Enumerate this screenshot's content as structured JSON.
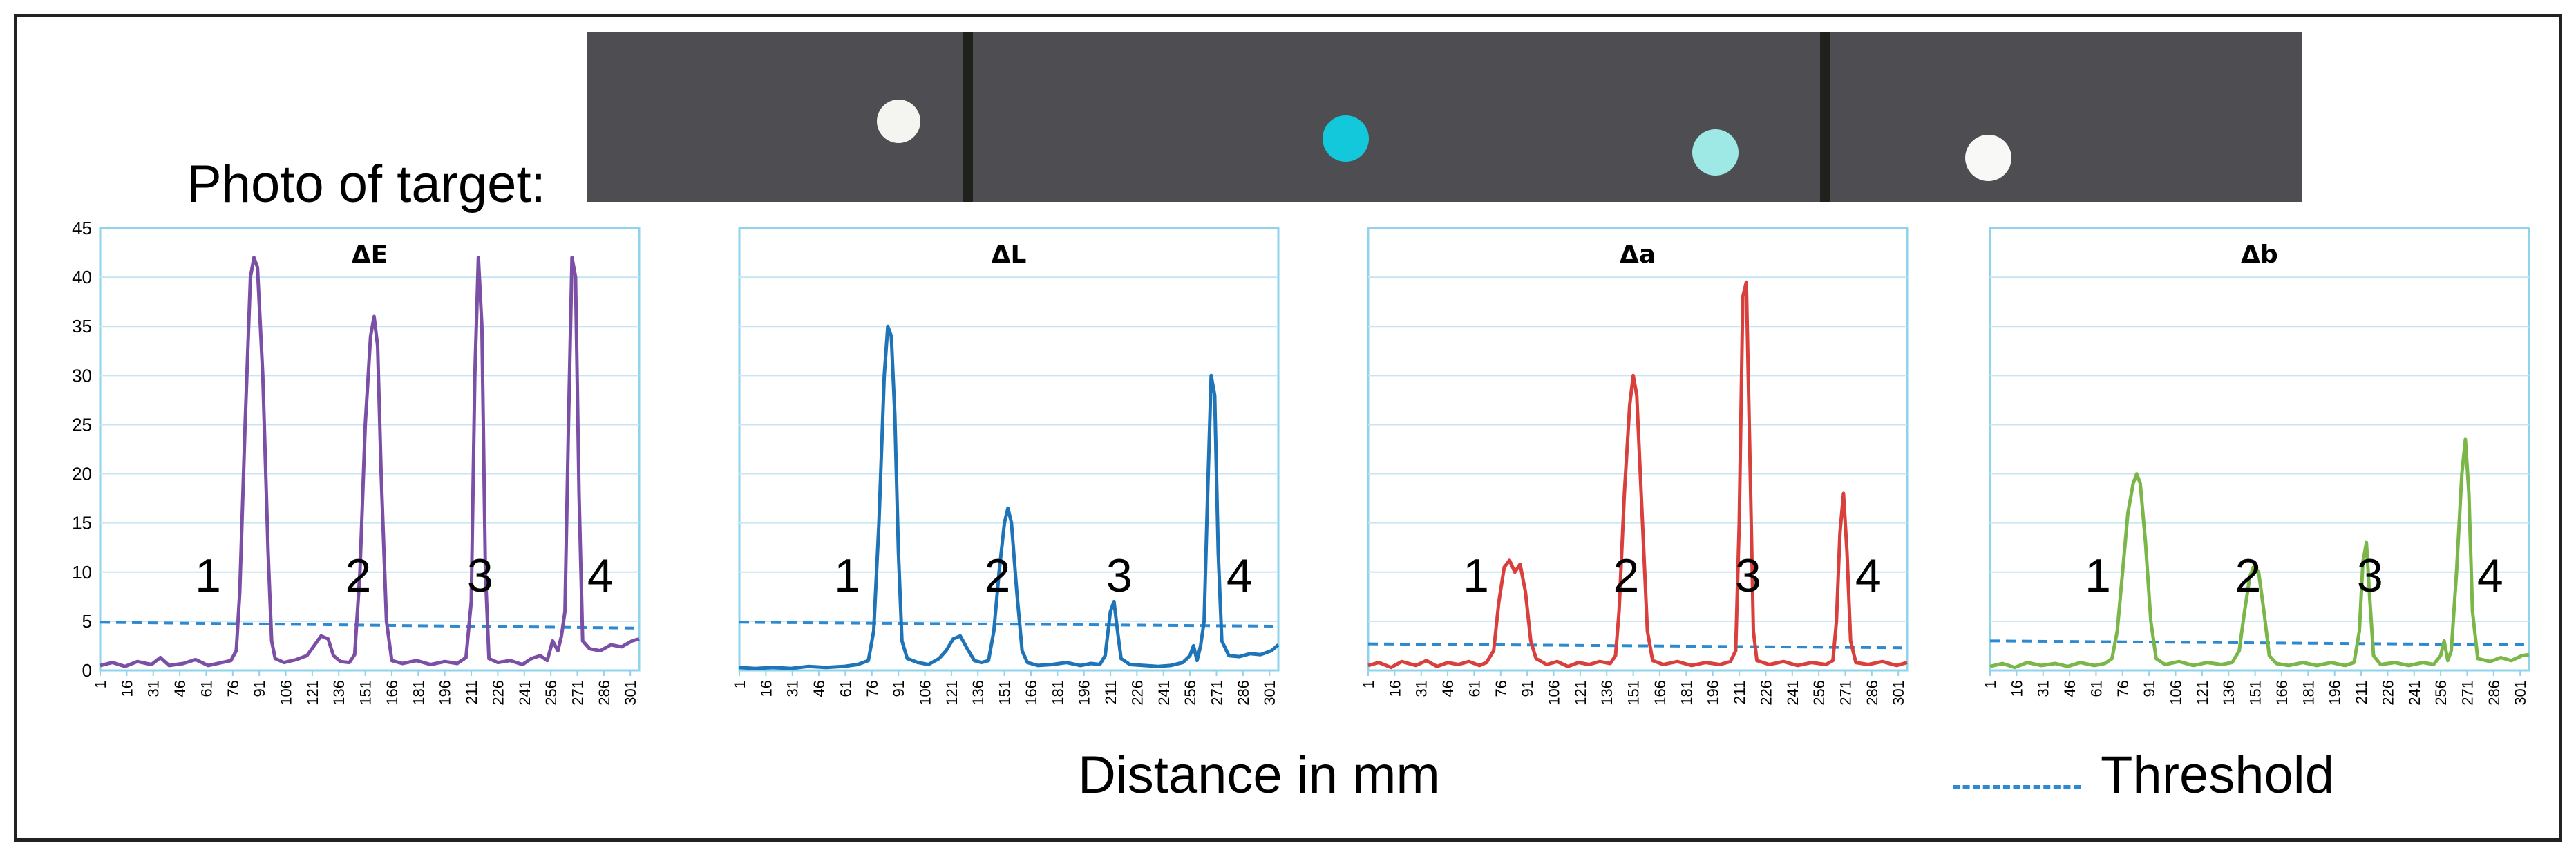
{
  "photo": {
    "label": "Photo of target:",
    "dots": [
      {
        "name": "white-dot-1",
        "color": "#f4f4f0"
      },
      {
        "name": "cyan-dot",
        "color": "#14c8dc"
      },
      {
        "name": "light-cyan-dot",
        "color": "#9ee8e6"
      },
      {
        "name": "white-dot-2",
        "color": "#f8f8f6"
      }
    ]
  },
  "xlabel": "Distance in mm",
  "legend": {
    "threshold_label": "Threshold",
    "threshold_color": "#2e8ad0"
  },
  "chart_data": [
    {
      "type": "line",
      "title": "ΔE",
      "color": "#7b4fa5",
      "xlim": [
        1,
        306
      ],
      "ylim": [
        0,
        45
      ],
      "yticks": [
        "0",
        "5",
        "10",
        "15",
        "20",
        "25",
        "30",
        "35",
        "40",
        "45"
      ],
      "xticks": [
        "1",
        "16",
        "31",
        "46",
        "61",
        "76",
        "91",
        "106",
        "121",
        "136",
        "151",
        "166",
        "181",
        "196",
        "211",
        "226",
        "241",
        "256",
        "271",
        "286",
        "301"
      ],
      "grid": true,
      "threshold": [
        [
          1,
          4.9
        ],
        [
          306,
          4.3
        ]
      ],
      "labels": [
        "1",
        "2",
        "3",
        "4"
      ],
      "label_x": [
        62,
        147,
        216,
        284
      ],
      "points": [
        [
          1,
          0.5
        ],
        [
          8,
          0.8
        ],
        [
          15,
          0.4
        ],
        [
          22,
          0.9
        ],
        [
          30,
          0.6
        ],
        [
          35,
          1.3
        ],
        [
          40,
          0.5
        ],
        [
          48,
          0.7
        ],
        [
          55,
          1.1
        ],
        [
          62,
          0.5
        ],
        [
          70,
          0.8
        ],
        [
          75,
          1.0
        ],
        [
          78,
          2
        ],
        [
          80,
          8
        ],
        [
          83,
          25
        ],
        [
          86,
          40
        ],
        [
          88,
          42
        ],
        [
          90,
          41
        ],
        [
          93,
          30
        ],
        [
          96,
          12
        ],
        [
          98,
          3
        ],
        [
          100,
          1.2
        ],
        [
          105,
          0.8
        ],
        [
          112,
          1.1
        ],
        [
          118,
          1.5
        ],
        [
          122,
          2.5
        ],
        [
          126,
          3.5
        ],
        [
          130,
          3.2
        ],
        [
          133,
          1.5
        ],
        [
          137,
          0.9
        ],
        [
          142,
          0.8
        ],
        [
          145,
          1.6
        ],
        [
          148,
          10
        ],
        [
          151,
          25
        ],
        [
          154,
          34
        ],
        [
          156,
          36
        ],
        [
          158,
          33
        ],
        [
          160,
          20
        ],
        [
          163,
          5
        ],
        [
          166,
          1.0
        ],
        [
          172,
          0.7
        ],
        [
          180,
          1.0
        ],
        [
          188,
          0.6
        ],
        [
          196,
          0.9
        ],
        [
          203,
          0.7
        ],
        [
          208,
          1.3
        ],
        [
          211,
          7
        ],
        [
          213,
          30
        ],
        [
          215,
          42
        ],
        [
          217,
          35
        ],
        [
          219,
          10
        ],
        [
          221,
          1.2
        ],
        [
          226,
          0.8
        ],
        [
          233,
          1.0
        ],
        [
          240,
          0.6
        ],
        [
          245,
          1.2
        ],
        [
          250,
          1.5
        ],
        [
          254,
          1.0
        ],
        [
          257,
          3.0
        ],
        [
          260,
          2.0
        ],
        [
          262,
          3.5
        ],
        [
          264,
          6
        ],
        [
          266,
          25
        ],
        [
          268,
          42
        ],
        [
          270,
          40
        ],
        [
          272,
          18
        ],
        [
          274,
          3
        ],
        [
          278,
          2.2
        ],
        [
          284,
          2.0
        ],
        [
          290,
          2.6
        ],
        [
          296,
          2.4
        ],
        [
          302,
          3.0
        ],
        [
          306,
          3.2
        ]
      ]
    },
    {
      "type": "line",
      "title": "ΔL",
      "color": "#1f74b8",
      "xlim": [
        1,
        306
      ],
      "ylim": [
        0,
        45
      ],
      "yticks": [],
      "xticks": [
        "1",
        "16",
        "31",
        "46",
        "61",
        "76",
        "91",
        "106",
        "121",
        "136",
        "151",
        "166",
        "181",
        "196",
        "211",
        "226",
        "241",
        "256",
        "271",
        "286",
        "301"
      ],
      "grid": true,
      "threshold": [
        [
          1,
          4.9
        ],
        [
          306,
          4.5
        ]
      ],
      "labels": [
        "1",
        "2",
        "3",
        "4"
      ],
      "label_x": [
        62,
        147,
        216,
        284
      ],
      "points": [
        [
          1,
          0.3
        ],
        [
          10,
          0.2
        ],
        [
          20,
          0.3
        ],
        [
          30,
          0.2
        ],
        [
          40,
          0.4
        ],
        [
          50,
          0.3
        ],
        [
          60,
          0.4
        ],
        [
          68,
          0.6
        ],
        [
          74,
          1.0
        ],
        [
          77,
          4
        ],
        [
          80,
          15
        ],
        [
          83,
          30
        ],
        [
          85,
          35
        ],
        [
          87,
          34
        ],
        [
          89,
          26
        ],
        [
          91,
          12
        ],
        [
          93,
          3
        ],
        [
          96,
          1.2
        ],
        [
          102,
          0.8
        ],
        [
          108,
          0.6
        ],
        [
          114,
          1.2
        ],
        [
          118,
          2.0
        ],
        [
          122,
          3.2
        ],
        [
          126,
          3.5
        ],
        [
          130,
          2.2
        ],
        [
          134,
          1.0
        ],
        [
          138,
          0.8
        ],
        [
          142,
          1.0
        ],
        [
          145,
          4
        ],
        [
          148,
          10
        ],
        [
          151,
          15
        ],
        [
          153,
          16.5
        ],
        [
          155,
          15
        ],
        [
          158,
          8
        ],
        [
          161,
          2
        ],
        [
          164,
          0.8
        ],
        [
          170,
          0.5
        ],
        [
          178,
          0.6
        ],
        [
          186,
          0.8
        ],
        [
          194,
          0.5
        ],
        [
          200,
          0.7
        ],
        [
          205,
          0.6
        ],
        [
          208,
          1.5
        ],
        [
          211,
          6
        ],
        [
          213,
          7
        ],
        [
          215,
          4
        ],
        [
          217,
          1.2
        ],
        [
          222,
          0.6
        ],
        [
          230,
          0.5
        ],
        [
          238,
          0.4
        ],
        [
          245,
          0.5
        ],
        [
          252,
          0.8
        ],
        [
          256,
          1.5
        ],
        [
          258,
          2.5
        ],
        [
          260,
          1.0
        ],
        [
          262,
          2.5
        ],
        [
          264,
          5
        ],
        [
          266,
          18
        ],
        [
          268,
          30
        ],
        [
          270,
          28
        ],
        [
          272,
          12
        ],
        [
          274,
          3
        ],
        [
          278,
          1.5
        ],
        [
          284,
          1.4
        ],
        [
          290,
          1.7
        ],
        [
          296,
          1.6
        ],
        [
          302,
          2.0
        ],
        [
          306,
          2.6
        ]
      ]
    },
    {
      "type": "line",
      "title": "Δa",
      "color": "#d9403c",
      "xlim": [
        1,
        306
      ],
      "ylim": [
        0,
        45
      ],
      "yticks": [],
      "xticks": [
        "1",
        "16",
        "31",
        "46",
        "61",
        "76",
        "91",
        "106",
        "121",
        "136",
        "151",
        "166",
        "181",
        "196",
        "211",
        "226",
        "241",
        "256",
        "271",
        "286",
        "301"
      ],
      "grid": true,
      "threshold": [
        [
          1,
          2.7
        ],
        [
          306,
          2.3
        ]
      ],
      "labels": [
        "1",
        "2",
        "3",
        "4"
      ],
      "label_x": [
        62,
        147,
        216,
        284
      ],
      "points": [
        [
          1,
          0.5
        ],
        [
          7,
          0.8
        ],
        [
          14,
          0.3
        ],
        [
          20,
          0.9
        ],
        [
          28,
          0.5
        ],
        [
          34,
          1.0
        ],
        [
          40,
          0.4
        ],
        [
          46,
          0.8
        ],
        [
          52,
          0.6
        ],
        [
          58,
          0.9
        ],
        [
          64,
          0.5
        ],
        [
          68,
          0.8
        ],
        [
          72,
          2
        ],
        [
          75,
          7
        ],
        [
          78,
          10.5
        ],
        [
          81,
          11.2
        ],
        [
          84,
          10
        ],
        [
          87,
          10.8
        ],
        [
          90,
          8
        ],
        [
          93,
          3
        ],
        [
          96,
          1.2
        ],
        [
          102,
          0.6
        ],
        [
          108,
          0.9
        ],
        [
          114,
          0.4
        ],
        [
          120,
          0.8
        ],
        [
          126,
          0.6
        ],
        [
          132,
          0.9
        ],
        [
          138,
          0.7
        ],
        [
          141,
          1.5
        ],
        [
          143,
          6
        ],
        [
          146,
          18
        ],
        [
          149,
          27
        ],
        [
          151,
          30
        ],
        [
          153,
          28
        ],
        [
          156,
          16
        ],
        [
          159,
          4
        ],
        [
          162,
          1.0
        ],
        [
          168,
          0.6
        ],
        [
          176,
          0.9
        ],
        [
          184,
          0.5
        ],
        [
          192,
          0.8
        ],
        [
          200,
          0.6
        ],
        [
          206,
          0.9
        ],
        [
          209,
          2
        ],
        [
          211,
          15
        ],
        [
          213,
          38
        ],
        [
          215,
          39.5
        ],
        [
          217,
          22
        ],
        [
          219,
          4
        ],
        [
          221,
          1.0
        ],
        [
          228,
          0.6
        ],
        [
          236,
          0.9
        ],
        [
          244,
          0.5
        ],
        [
          252,
          0.8
        ],
        [
          260,
          0.6
        ],
        [
          264,
          1.0
        ],
        [
          266,
          5
        ],
        [
          268,
          14
        ],
        [
          270,
          18
        ],
        [
          272,
          12
        ],
        [
          274,
          3
        ],
        [
          277,
          0.8
        ],
        [
          284,
          0.6
        ],
        [
          292,
          0.9
        ],
        [
          300,
          0.5
        ],
        [
          306,
          0.8
        ]
      ]
    },
    {
      "type": "line",
      "title": "Δb",
      "color": "#7ab648",
      "xlim": [
        1,
        306
      ],
      "ylim": [
        0,
        45
      ],
      "yticks": [],
      "xticks": [
        "1",
        "16",
        "31",
        "46",
        "61",
        "76",
        "91",
        "106",
        "121",
        "136",
        "151",
        "166",
        "181",
        "196",
        "211",
        "226",
        "241",
        "256",
        "271",
        "286",
        "301"
      ],
      "grid": true,
      "threshold": [
        [
          1,
          3.0
        ],
        [
          306,
          2.6
        ]
      ],
      "labels": [
        "1",
        "2",
        "3",
        "4"
      ],
      "label_x": [
        62,
        147,
        216,
        284
      ],
      "points": [
        [
          1,
          0.4
        ],
        [
          8,
          0.7
        ],
        [
          15,
          0.3
        ],
        [
          22,
          0.8
        ],
        [
          30,
          0.5
        ],
        [
          38,
          0.7
        ],
        [
          45,
          0.4
        ],
        [
          52,
          0.8
        ],
        [
          60,
          0.5
        ],
        [
          66,
          0.7
        ],
        [
          70,
          1.2
        ],
        [
          73,
          4
        ],
        [
          76,
          10
        ],
        [
          79,
          16
        ],
        [
          82,
          19
        ],
        [
          84,
          20
        ],
        [
          86,
          19
        ],
        [
          89,
          13
        ],
        [
          92,
          5
        ],
        [
          95,
          1.2
        ],
        [
          100,
          0.6
        ],
        [
          108,
          0.9
        ],
        [
          116,
          0.5
        ],
        [
          124,
          0.8
        ],
        [
          132,
          0.6
        ],
        [
          138,
          0.8
        ],
        [
          142,
          2
        ],
        [
          145,
          6
        ],
        [
          148,
          9.5
        ],
        [
          150,
          10.5
        ],
        [
          153,
          10
        ],
        [
          156,
          6
        ],
        [
          159,
          1.5
        ],
        [
          163,
          0.7
        ],
        [
          170,
          0.5
        ],
        [
          178,
          0.8
        ],
        [
          186,
          0.5
        ],
        [
          194,
          0.8
        ],
        [
          202,
          0.5
        ],
        [
          207,
          0.8
        ],
        [
          210,
          4
        ],
        [
          212,
          11
        ],
        [
          214,
          13
        ],
        [
          216,
          7
        ],
        [
          218,
          1.5
        ],
        [
          222,
          0.6
        ],
        [
          230,
          0.8
        ],
        [
          238,
          0.5
        ],
        [
          246,
          0.8
        ],
        [
          252,
          0.6
        ],
        [
          256,
          1.5
        ],
        [
          258,
          3
        ],
        [
          260,
          1.0
        ],
        [
          262,
          2
        ],
        [
          265,
          10
        ],
        [
          268,
          20
        ],
        [
          270,
          23.5
        ],
        [
          272,
          18
        ],
        [
          274,
          6
        ],
        [
          277,
          1.2
        ],
        [
          284,
          0.9
        ],
        [
          290,
          1.3
        ],
        [
          296,
          1.0
        ],
        [
          302,
          1.5
        ],
        [
          306,
          1.6
        ]
      ]
    }
  ]
}
